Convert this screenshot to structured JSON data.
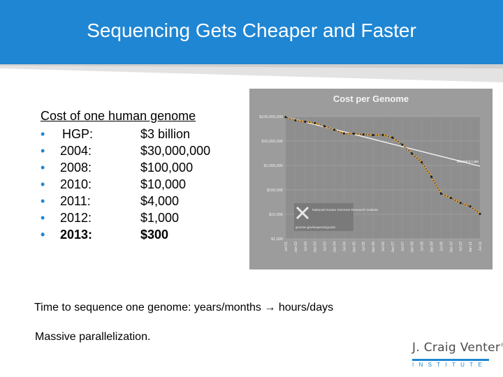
{
  "slide": {
    "title": "Sequencing Gets Cheaper and Faster",
    "list_heading": "Cost of one human genome",
    "bullet": "•",
    "items": [
      {
        "label": "HGP:",
        "value": "$3 billion",
        "bold": false
      },
      {
        "label": "2004:",
        "value": "$30,000,000",
        "bold": false
      },
      {
        "label": "2008:",
        "value": "$100,000",
        "bold": false
      },
      {
        "label": "2010:",
        "value": "$10,000",
        "bold": false
      },
      {
        "label": "2011:",
        "value": "$4,000",
        "bold": false
      },
      {
        "label": "2012:",
        "value": "$1,000",
        "bold": false
      },
      {
        "label": "2013:",
        "value": "$300",
        "bold": true
      }
    ],
    "time_line_before": "Time to sequence one genome:  years/months ",
    "arrow": "→",
    "time_line_after": " hours/days",
    "massive_line": "Massive parallelization.",
    "logo": {
      "name": "J. Craig Venter",
      "mark": "®",
      "institute": "INSTITUTE"
    },
    "colors": {
      "accent": "#1f86d3",
      "chart_bg": "#9c9c9c",
      "series": "#f5a623"
    }
  },
  "chart_data": {
    "type": "line",
    "title": "Cost per Genome",
    "y_scale": "log",
    "y_ticks": [
      "$100,000,000",
      "$10,000,000",
      "$1,000,000",
      "$100,000",
      "$10,000",
      "$1,000"
    ],
    "x_ticks": [
      "Jul-01",
      "Jan-02",
      "Jul-02",
      "Jan-03",
      "Jul-03",
      "Jan-04",
      "Jul-04",
      "Jan-05",
      "Jul-05",
      "Jan-06",
      "Jul-06",
      "Jan-07",
      "Jul-07",
      "Jan-08",
      "Jul-08",
      "Jan-09",
      "Jul-09",
      "Jan-10",
      "Jul-10",
      "Jan-11",
      "Jul-11"
    ],
    "series": [
      {
        "name": "",
        "values": [
          95263072,
          70175437,
          61448421,
          53751684,
          40157554,
          28780376,
          20442576,
          19934346,
          18519312,
          17534040,
          17690132,
          13801124,
          7147571,
          3063820,
          1352982,
          342502,
          70333,
          46774,
          29092,
          20963,
          10474
        ]
      },
      {
        "name": "Moore's Law",
        "values": [
          95263072,
          75611405,
          60012950,
          47632190,
          37806105,
          30006830,
          23816560,
          18903530,
          15003720,
          11908510,
          9452130,
          7502380,
          5954790,
          4726340,
          3751380,
          2977580,
          2363370,
          1875880,
          1488940,
          1181820,
          938040
        ]
      }
    ],
    "notes": [
      "National Human Genome Research Institute",
      "genome.gov/sequencingcosts"
    ]
  }
}
